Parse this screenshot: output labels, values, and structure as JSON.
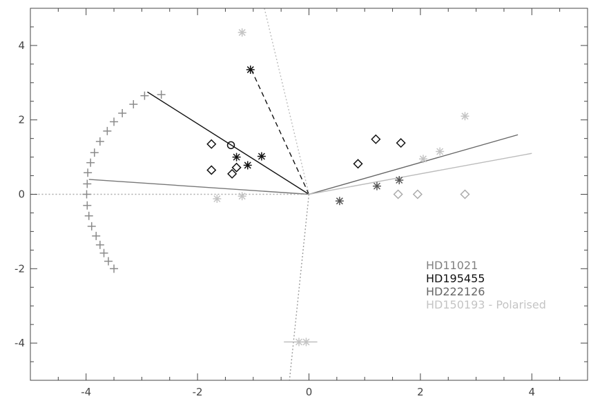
{
  "chart_data": {
    "type": "scatter",
    "title": "",
    "xlabel": "",
    "ylabel": "",
    "xlim": [
      -5,
      5
    ],
    "ylim": [
      -5,
      5
    ],
    "grid": false,
    "legend_placement": "bottom-right",
    "x_ticks": [
      {
        "value": -4,
        "label": "-4"
      },
      {
        "value": -2,
        "label": "-2"
      },
      {
        "value": 0,
        "label": "0"
      },
      {
        "value": 2,
        "label": "2"
      },
      {
        "value": 4,
        "label": "4"
      }
    ],
    "y_ticks": [
      {
        "value": -4,
        "label": "-4"
      },
      {
        "value": -2,
        "label": "-2"
      },
      {
        "value": 0,
        "label": "0"
      },
      {
        "value": 2,
        "label": "2"
      },
      {
        "value": 4,
        "label": "4"
      }
    ],
    "legend": [
      {
        "label": "HD11021",
        "color": "#808080"
      },
      {
        "label": "HD195455",
        "color": "#111111"
      },
      {
        "label": "HD222126",
        "color": "#666666"
      },
      {
        "label": "HD150193 - Polarised",
        "color": "#c4c4c4"
      }
    ],
    "arcs": [
      {
        "marker": "plus",
        "color": "#8a8a8a",
        "points": [
          [
            -2.65,
            2.68
          ],
          [
            -2.95,
            2.65
          ],
          [
            -3.15,
            2.42
          ],
          [
            -3.35,
            2.18
          ],
          [
            -3.5,
            1.95
          ],
          [
            -3.62,
            1.7
          ],
          [
            -3.75,
            1.42
          ],
          [
            -3.85,
            1.12
          ],
          [
            -3.92,
            0.85
          ],
          [
            -3.97,
            0.58
          ],
          [
            -3.98,
            0.28
          ],
          [
            -3.99,
            0.0
          ],
          [
            -3.98,
            -0.3
          ],
          [
            -3.95,
            -0.58
          ],
          [
            -3.9,
            -0.86
          ],
          [
            -3.82,
            -1.12
          ],
          [
            -3.75,
            -1.36
          ],
          [
            -3.68,
            -1.58
          ],
          [
            -3.6,
            -1.8
          ],
          [
            -3.5,
            -2.0
          ]
        ]
      }
    ],
    "series": [
      {
        "marker": "asterisk",
        "color": "#111111",
        "points": [
          [
            -1.05,
            3.35
          ],
          [
            -1.3,
            1.0
          ],
          [
            -0.85,
            1.02
          ],
          [
            -1.1,
            0.78
          ]
        ]
      },
      {
        "marker": "diamond",
        "color": "#111111",
        "points": [
          [
            -1.75,
            1.35
          ],
          [
            -1.75,
            0.65
          ],
          [
            -1.3,
            0.72
          ],
          [
            -1.38,
            0.55
          ],
          [
            0.88,
            0.82
          ],
          [
            1.2,
            1.48
          ],
          [
            1.65,
            1.38
          ]
        ]
      },
      {
        "marker": "circle",
        "color": "#111111",
        "points": [
          [
            -1.4,
            1.32
          ]
        ]
      },
      {
        "marker": "asterisk",
        "color": "#555555",
        "points": [
          [
            0.55,
            -0.18
          ],
          [
            1.22,
            0.22
          ],
          [
            1.62,
            0.38
          ]
        ]
      },
      {
        "marker": "diamond",
        "color": "#aaaaaa",
        "points": [
          [
            1.6,
            0.0
          ],
          [
            1.95,
            0.0
          ],
          [
            2.8,
            0.0
          ]
        ]
      },
      {
        "marker": "asterisk",
        "color": "#c4c4c4",
        "points": [
          [
            -1.2,
            4.35
          ],
          [
            2.8,
            2.1
          ],
          [
            2.05,
            0.95
          ],
          [
            2.35,
            1.15
          ],
          [
            -1.65,
            -0.12
          ],
          [
            -1.2,
            -0.05
          ],
          [
            -0.18,
            -3.97
          ],
          [
            -0.05,
            -3.97
          ]
        ]
      }
    ],
    "lines": [
      {
        "color": "#111111",
        "dash": "solid",
        "points": [
          [
            0,
            0
          ],
          [
            -2.9,
            2.75
          ]
        ]
      },
      {
        "color": "#777777",
        "dash": "solid",
        "points": [
          [
            0,
            0
          ],
          [
            -3.95,
            0.4
          ]
        ]
      },
      {
        "color": "#111111",
        "dash": "dash",
        "points": [
          [
            0,
            0
          ],
          [
            -1.05,
            3.4
          ]
        ]
      },
      {
        "color": "#bbbbbb",
        "dash": "dot",
        "points": [
          [
            0,
            0
          ],
          [
            -0.8,
            5.0
          ]
        ]
      },
      {
        "color": "#666666",
        "dash": "solid",
        "points": [
          [
            0,
            0
          ],
          [
            3.75,
            1.6
          ]
        ]
      },
      {
        "color": "#bbbbbb",
        "dash": "solid",
        "points": [
          [
            0,
            0
          ],
          [
            4.0,
            1.1
          ]
        ]
      },
      {
        "color": "#aaaaaa",
        "dash": "dot",
        "points": [
          [
            0,
            0
          ],
          [
            -5.0,
            0
          ]
        ]
      },
      {
        "color": "#999999",
        "dash": "dot",
        "points": [
          [
            0,
            0
          ],
          [
            -0.35,
            -5.0
          ]
        ]
      },
      {
        "color": "#bbbbbb",
        "dash": "solid",
        "points": [
          [
            -0.45,
            -3.97
          ],
          [
            0.15,
            -3.97
          ]
        ]
      }
    ]
  }
}
